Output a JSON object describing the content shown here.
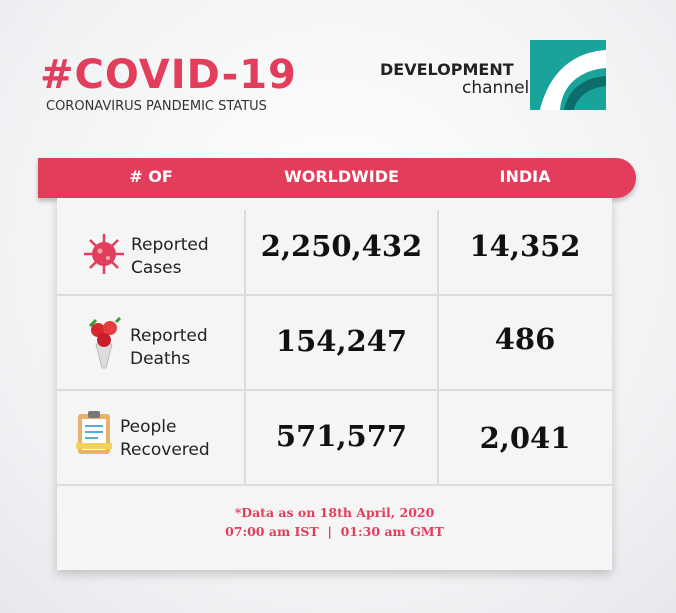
{
  "header": {
    "title": "#COVID-19",
    "subtitle": "CORONAVIRUS PANDEMIC STATUS"
  },
  "logo": {
    "line1": "DEVELOPMENT",
    "line2": "channel"
  },
  "table": {
    "columns": [
      "# OF",
      "WORLDWIDE",
      "INDIA"
    ],
    "rows": [
      {
        "label": [
          "Reported",
          "Cases"
        ],
        "worldwide": "2,250,432",
        "india": "14,352"
      },
      {
        "label": [
          "Reported",
          "Deaths"
        ],
        "worldwide": "154,247",
        "india": "486"
      },
      {
        "label": [
          "People",
          "Recovered"
        ],
        "worldwide": "571,577",
        "india": "2,041"
      }
    ]
  },
  "footnote": [
    "*Data as on 18th April, 2020",
    "07:00 am IST  |  01:30 am GMT"
  ]
}
